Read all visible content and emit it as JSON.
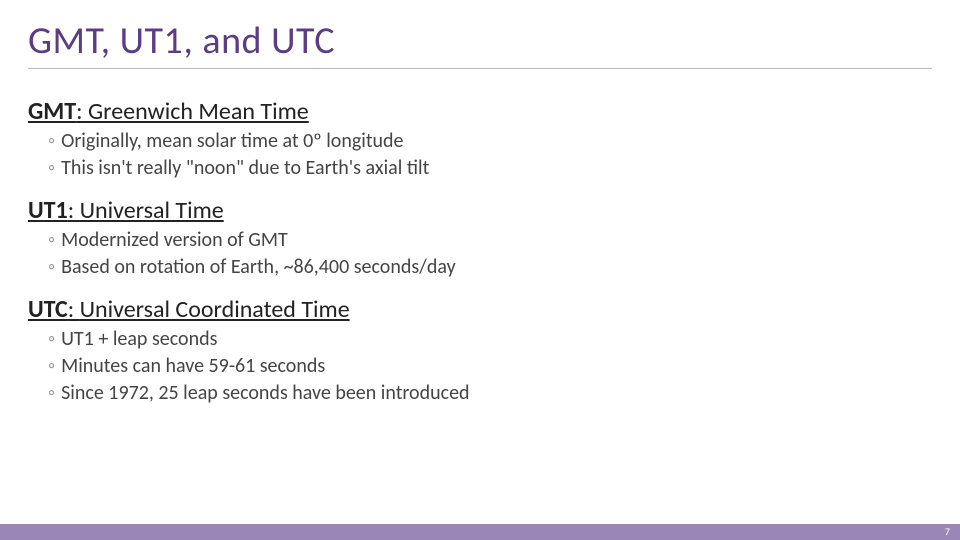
{
  "title": "GMT, UT1, and UTC",
  "colors": {
    "title": "#5b3d82",
    "rule": "#b8b8b8",
    "body": "#444444",
    "bulletMark": "#9a9a9a",
    "footerBar": "#9a86b7",
    "pageNum": "#ffffff",
    "background": "#ffffff"
  },
  "typography": {
    "title_fontsize": 38,
    "heading_fontsize": 24,
    "bullet_fontsize": 20,
    "page_fontsize": 10,
    "font_family": "Calibri"
  },
  "sections": [
    {
      "abbr": "GMT",
      "sep": ": ",
      "expansion": "Greenwich Mean Time",
      "bullets": [
        "Originally, mean solar time at 0º longitude",
        "This isn't really \"noon\" due to Earth's axial tilt"
      ]
    },
    {
      "abbr": "UT1",
      "sep": ": ",
      "expansion": "Universal Time",
      "bullets": [
        "Modernized version of GMT",
        "Based on rotation of Earth, ~86,400 seconds/day"
      ]
    },
    {
      "abbr": "UTC",
      "sep": ": ",
      "expansion": "Universal Coordinated Time",
      "bullets": [
        "UT1 + leap seconds",
        "Minutes can have 59-61 seconds",
        "Since 1972, 25 leap seconds have been introduced"
      ]
    }
  ],
  "bulletMark": "◦",
  "pageNumber": "7"
}
